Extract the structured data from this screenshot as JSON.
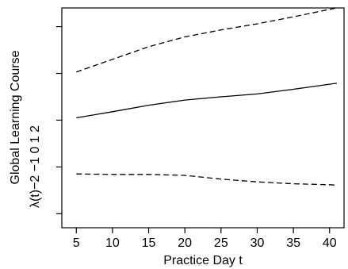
{
  "chart_data": {
    "type": "line",
    "title": "",
    "xlabel": "Practice Day t",
    "ylabel_line1": "Global Learning Course",
    "ylabel_line2": "λ(t)−2 −1 0 1 2",
    "x_ticks": [
      5,
      10,
      15,
      20,
      25,
      30,
      35,
      40
    ],
    "xlim": [
      3,
      42
    ],
    "ylim": [
      -2.3,
      2.4
    ],
    "series": [
      {
        "style": "solid",
        "x": [
          5,
          10,
          15,
          20,
          25,
          30,
          35,
          40,
          41
        ],
        "y": [
          0.05,
          0.18,
          0.32,
          0.43,
          0.5,
          0.56,
          0.66,
          0.77,
          0.79
        ]
      },
      {
        "style": "dashed",
        "x": [
          5,
          10,
          15,
          20,
          25,
          30,
          35,
          40,
          41
        ],
        "y": [
          1.03,
          1.3,
          1.57,
          1.78,
          1.93,
          2.06,
          2.21,
          2.37,
          2.4
        ]
      },
      {
        "style": "dashed",
        "x": [
          5,
          10,
          15,
          20,
          25,
          30,
          35,
          40,
          41
        ],
        "y": [
          -1.15,
          -1.16,
          -1.16,
          -1.18,
          -1.26,
          -1.32,
          -1.36,
          -1.38,
          -1.39
        ]
      }
    ]
  }
}
